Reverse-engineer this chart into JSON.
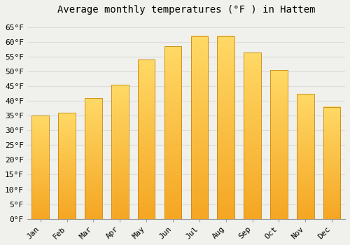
{
  "title": "Average monthly temperatures (°F ) in Hattem",
  "months": [
    "Jan",
    "Feb",
    "Mar",
    "Apr",
    "May",
    "Jun",
    "Jul",
    "Aug",
    "Sep",
    "Oct",
    "Nov",
    "Dec"
  ],
  "values": [
    35,
    36,
    41,
    45.5,
    54,
    58.5,
    62,
    62,
    56.5,
    50.5,
    42.5,
    38
  ],
  "bar_color_bottom": "#F5A623",
  "bar_color_top": "#FFD966",
  "bar_edge_color": "#C8860A",
  "background_color": "#F0F0EC",
  "grid_color": "#DCDCD8",
  "ylim": [
    0,
    68
  ],
  "yticks": [
    0,
    5,
    10,
    15,
    20,
    25,
    30,
    35,
    40,
    45,
    50,
    55,
    60,
    65
  ],
  "ytick_labels": [
    "0°F",
    "5°F",
    "10°F",
    "15°F",
    "20°F",
    "25°F",
    "30°F",
    "35°F",
    "40°F",
    "45°F",
    "50°F",
    "55°F",
    "60°F",
    "65°F"
  ],
  "title_fontsize": 10,
  "tick_fontsize": 8,
  "font_family": "monospace",
  "bar_width": 0.65
}
